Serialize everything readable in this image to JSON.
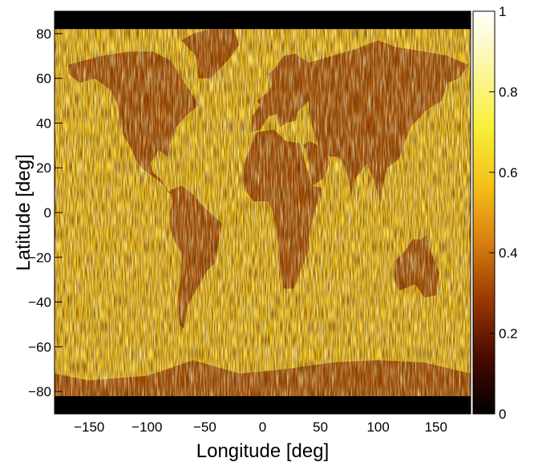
{
  "chart_data": {
    "type": "heatmap",
    "title": "",
    "xlabel": "Longitude [deg]",
    "ylabel": "Latitude [deg]",
    "xlim": [
      -180,
      180
    ],
    "ylim": [
      -90,
      90
    ],
    "x_ticks": [
      {
        "value": -150,
        "label": "−150"
      },
      {
        "value": -100,
        "label": "−100"
      },
      {
        "value": -50,
        "label": "−50"
      },
      {
        "value": 0,
        "label": "0"
      },
      {
        "value": 50,
        "label": "50"
      },
      {
        "value": 100,
        "label": "100"
      },
      {
        "value": 150,
        "label": "150"
      }
    ],
    "y_ticks": [
      {
        "value": -80,
        "label": "−80"
      },
      {
        "value": -60,
        "label": "−60"
      },
      {
        "value": -40,
        "label": "−40"
      },
      {
        "value": -20,
        "label": "−20"
      },
      {
        "value": 0,
        "label": "0"
      },
      {
        "value": 20,
        "label": "20"
      },
      {
        "value": 40,
        "label": "40"
      },
      {
        "value": 60,
        "label": "60"
      },
      {
        "value": 80,
        "label": "80"
      }
    ],
    "colorbar": {
      "range": [
        0,
        1
      ],
      "ticks": [
        {
          "value": 0,
          "label": "0"
        },
        {
          "value": 0.2,
          "label": "0.2"
        },
        {
          "value": 0.4,
          "label": "0.4"
        },
        {
          "value": 0.6,
          "label": "0.6"
        },
        {
          "value": 0.8,
          "label": "0.8"
        },
        {
          "value": 1,
          "label": "1"
        }
      ],
      "colormap": [
        "#000000",
        "#4a0a00",
        "#9a3a00",
        "#d98010",
        "#f5c21a",
        "#f7f03a",
        "#fbf6a0",
        "#ffffff"
      ]
    },
    "coverage": {
      "data_lat_range": [
        -82,
        82
      ],
      "no_data_color": "#000000",
      "ocean_level": 0.6,
      "land_level": 0.3,
      "land_regions": [
        {
          "name": "North America",
          "polygon": [
            [
              -168,
              66
            ],
            [
              -140,
              70
            ],
            [
              -115,
              72
            ],
            [
              -95,
              72
            ],
            [
              -80,
              68
            ],
            [
              -70,
              60
            ],
            [
              -60,
              52
            ],
            [
              -55,
              48
            ],
            [
              -65,
              44
            ],
            [
              -75,
              38
            ],
            [
              -80,
              30
            ],
            [
              -82,
              25
            ],
            [
              -90,
              28
            ],
            [
              -97,
              22
            ],
            [
              -95,
              18
            ],
            [
              -88,
              15
            ],
            [
              -82,
              9
            ],
            [
              -78,
              8
            ],
            [
              -85,
              12
            ],
            [
              -92,
              15
            ],
            [
              -105,
              20
            ],
            [
              -110,
              24
            ],
            [
              -115,
              30
            ],
            [
              -120,
              34
            ],
            [
              -124,
              40
            ],
            [
              -125,
              48
            ],
            [
              -132,
              55
            ],
            [
              -145,
              60
            ],
            [
              -158,
              58
            ],
            [
              -168,
              62
            ]
          ]
        },
        {
          "name": "Greenland",
          "polygon": [
            [
              -55,
              60
            ],
            [
              -45,
              60
            ],
            [
              -30,
              68
            ],
            [
              -20,
              75
            ],
            [
              -25,
              82
            ],
            [
              -45,
              82
            ],
            [
              -60,
              80
            ],
            [
              -70,
              77
            ],
            [
              -58,
              70
            ]
          ]
        },
        {
          "name": "South America",
          "polygon": [
            [
              -80,
              10
            ],
            [
              -70,
              12
            ],
            [
              -60,
              8
            ],
            [
              -50,
              2
            ],
            [
              -35,
              -5
            ],
            [
              -38,
              -13
            ],
            [
              -40,
              -22
            ],
            [
              -48,
              -26
            ],
            [
              -58,
              -35
            ],
            [
              -65,
              -42
            ],
            [
              -68,
              -52
            ],
            [
              -72,
              -50
            ],
            [
              -74,
              -40
            ],
            [
              -71,
              -30
            ],
            [
              -70,
              -18
            ],
            [
              -76,
              -13
            ],
            [
              -81,
              -5
            ],
            [
              -80,
              0
            ],
            [
              -78,
              5
            ]
          ]
        },
        {
          "name": "Europe",
          "polygon": [
            [
              -10,
              36
            ],
            [
              -9,
              43
            ],
            [
              -2,
              48
            ],
            [
              -5,
              50
            ],
            [
              5,
              54
            ],
            [
              8,
              57
            ],
            [
              5,
              62
            ],
            [
              10,
              64
            ],
            [
              18,
              70
            ],
            [
              28,
              71
            ],
            [
              40,
              67
            ],
            [
              40,
              50
            ],
            [
              30,
              45
            ],
            [
              28,
              41
            ],
            [
              20,
              40
            ],
            [
              15,
              38
            ],
            [
              12,
              44
            ],
            [
              5,
              43
            ],
            [
              -2,
              37
            ]
          ]
        },
        {
          "name": "Africa",
          "polygon": [
            [
              -17,
              15
            ],
            [
              -16,
              22
            ],
            [
              -10,
              30
            ],
            [
              -5,
              36
            ],
            [
              10,
              37
            ],
            [
              20,
              32
            ],
            [
              32,
              31
            ],
            [
              34,
              28
            ],
            [
              38,
              20
            ],
            [
              43,
              12
            ],
            [
              51,
              11
            ],
            [
              45,
              0
            ],
            [
              40,
              -10
            ],
            [
              40,
              -16
            ],
            [
              34,
              -25
            ],
            [
              27,
              -34
            ],
            [
              18,
              -34
            ],
            [
              14,
              -22
            ],
            [
              12,
              -8
            ],
            [
              9,
              0
            ],
            [
              5,
              5
            ],
            [
              -8,
              5
            ],
            [
              -15,
              10
            ]
          ]
        },
        {
          "name": "Asia",
          "polygon": [
            [
              40,
              67
            ],
            [
              60,
              70
            ],
            [
              80,
              73
            ],
            [
              100,
              77
            ],
            [
              115,
              74
            ],
            [
              140,
              72
            ],
            [
              160,
              70
            ],
            [
              178,
              66
            ],
            [
              170,
              60
            ],
            [
              160,
              58
            ],
            [
              155,
              50
            ],
            [
              142,
              46
            ],
            [
              135,
              42
            ],
            [
              128,
              38
            ],
            [
              122,
              30
            ],
            [
              118,
              24
            ],
            [
              108,
              20
            ],
            [
              104,
              12
            ],
            [
              102,
              4
            ],
            [
              96,
              15
            ],
            [
              90,
              22
            ],
            [
              80,
              15
            ],
            [
              77,
              8
            ],
            [
              72,
              20
            ],
            [
              66,
              25
            ],
            [
              58,
              25
            ],
            [
              52,
              28
            ],
            [
              48,
              30
            ],
            [
              43,
              38
            ],
            [
              40,
              45
            ],
            [
              40,
              50
            ]
          ]
        },
        {
          "name": "Arabia",
          "polygon": [
            [
              35,
              30
            ],
            [
              38,
              28
            ],
            [
              43,
              12
            ],
            [
              52,
              15
            ],
            [
              58,
              22
            ],
            [
              56,
              26
            ],
            [
              48,
              30
            ],
            [
              40,
              32
            ]
          ]
        },
        {
          "name": "Australia",
          "polygon": [
            [
              114,
              -22
            ],
            [
              122,
              -18
            ],
            [
              130,
              -12
            ],
            [
              137,
              -12
            ],
            [
              142,
              -10
            ],
            [
              146,
              -18
            ],
            [
              153,
              -27
            ],
            [
              150,
              -37
            ],
            [
              140,
              -38
            ],
            [
              132,
              -32
            ],
            [
              118,
              -35
            ],
            [
              114,
              -30
            ]
          ]
        },
        {
          "name": "Antarctica",
          "polygon": [
            [
              -180,
              -72
            ],
            [
              -150,
              -75
            ],
            [
              -100,
              -73
            ],
            [
              -60,
              -66
            ],
            [
              -20,
              -72
            ],
            [
              20,
              -70
            ],
            [
              60,
              -67
            ],
            [
              100,
              -66
            ],
            [
              140,
              -67
            ],
            [
              180,
              -72
            ],
            [
              180,
              -82
            ],
            [
              -180,
              -82
            ]
          ]
        }
      ]
    }
  }
}
